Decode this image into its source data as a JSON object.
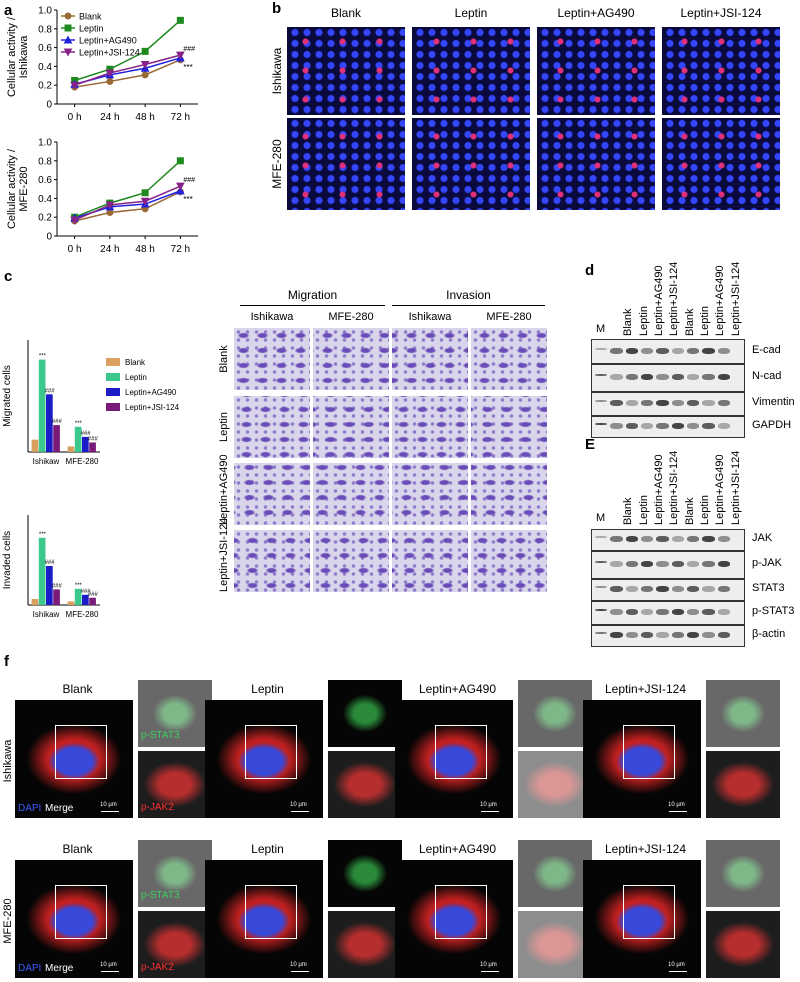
{
  "chart_data": [
    {
      "type": "line",
      "ylabel": "Cellular activity / Ishikawa",
      "categories": [
        "0 h",
        "24 h",
        "48 h",
        "72 h"
      ],
      "ylim": [
        0,
        1
      ],
      "yticks": [
        0,
        0.2,
        0.4,
        0.6,
        0.8,
        {
          "value": 1,
          "label": "1.0"
        }
      ],
      "legend": "upper left",
      "annotations": [
        "###",
        "***"
      ],
      "series": [
        {
          "name": "Blank",
          "color": "#9b6a34",
          "marker": "circle",
          "values": [
            0.18,
            0.24,
            0.31,
            0.47
          ]
        },
        {
          "name": "Leptin",
          "color": "#1e8a1e",
          "marker": "square",
          "values": [
            0.25,
            0.37,
            0.56,
            0.89
          ]
        },
        {
          "name": "Leptin+AG490",
          "color": "#2222dd",
          "marker": "triangle-up",
          "values": [
            0.21,
            0.31,
            0.38,
            0.49
          ]
        },
        {
          "name": "Leptin+JSI-124",
          "color": "#882288",
          "marker": "triangle-down",
          "values": [
            0.2,
            0.33,
            0.42,
            0.52
          ]
        }
      ]
    },
    {
      "type": "line",
      "ylabel": "Cellular activity / MFE-280",
      "categories": [
        "0 h",
        "24 h",
        "48 h",
        "72 h"
      ],
      "ylim": [
        0,
        1
      ],
      "yticks": [
        0,
        0.2,
        0.4,
        0.6,
        0.8,
        {
          "value": 1,
          "label": "1.0"
        }
      ],
      "annotations": [
        "###",
        "***"
      ],
      "series": [
        {
          "name": "Blank",
          "color": "#9b6a34",
          "marker": "circle",
          "values": [
            0.16,
            0.25,
            0.29,
            0.47
          ]
        },
        {
          "name": "Leptin",
          "color": "#1e8a1e",
          "marker": "square",
          "values": [
            0.2,
            0.35,
            0.46,
            0.8
          ]
        },
        {
          "name": "Leptin+AG490",
          "color": "#2222dd",
          "marker": "triangle-up",
          "values": [
            0.19,
            0.31,
            0.34,
            0.48
          ]
        },
        {
          "name": "Leptin+JSI-124",
          "color": "#882288",
          "marker": "triangle-down",
          "values": [
            0.17,
            0.33,
            0.37,
            0.53
          ]
        }
      ]
    },
    {
      "type": "bar",
      "ylabel": "Migrated cells",
      "categories": [
        "Ishikaw",
        "MFE-280"
      ],
      "ylim": [
        0,
        200
      ],
      "legend": "right",
      "annotations": [
        "***",
        "###"
      ],
      "series": [
        {
          "name": "Blank",
          "color": "#d9a060",
          "values": [
            22,
            10
          ]
        },
        {
          "name": "Leptin",
          "color": "#3cc88c",
          "values": [
            165,
            45
          ]
        },
        {
          "name": "Leptin+AG490",
          "color": "#1b1bc8",
          "values": [
            103,
            27
          ]
        },
        {
          "name": "Leptin+JSI-124",
          "color": "#7a1a7a",
          "values": [
            48,
            17
          ]
        }
      ]
    },
    {
      "type": "bar",
      "ylabel": "Invaded cells",
      "categories": [
        "Ishikaw",
        "MFE-280"
      ],
      "ylim": [
        0,
        150
      ],
      "annotations": [
        "***",
        "###"
      ],
      "series": [
        {
          "name": "Blank",
          "color": "#d9a060",
          "values": [
            10,
            6
          ]
        },
        {
          "name": "Leptin",
          "color": "#3cc88c",
          "values": [
            112,
            27
          ]
        },
        {
          "name": "Leptin+AG490",
          "color": "#1b1bc8",
          "values": [
            65,
            17
          ]
        },
        {
          "name": "Leptin+JSI-124",
          "color": "#7a1a7a",
          "values": [
            26,
            12
          ]
        }
      ]
    }
  ],
  "panel_labels": [
    "a",
    "b",
    "c",
    "d",
    "E",
    "f"
  ],
  "panel_b": {
    "columns": [
      "Blank",
      "Leptin",
      "Leptin+AG490",
      "Leptin+JSI-124"
    ],
    "rows": [
      "Ishikawa",
      "MFE-280"
    ]
  },
  "panel_c": {
    "groups": [
      "Migration",
      "Invasion"
    ],
    "cell_lines": [
      "Ishikawa",
      "MFE-280",
      "Ishikawa",
      "MFE-280"
    ],
    "rows": [
      "Blank",
      "Leptin",
      "Leptin+AG490",
      "Leptin+JSI-124"
    ]
  },
  "panel_d": {
    "lanes": [
      "M",
      "Blank",
      "Leptin",
      "Leptin+AG490",
      "Leptin+JSI-124",
      "Blank",
      "Leptin",
      "Leptin+AG490",
      "Leptin+JSI-124"
    ],
    "proteins": [
      "E-cad",
      "N-cad",
      "Vimentin",
      "GAPDH"
    ]
  },
  "panel_E": {
    "lanes": [
      "M",
      "Blank",
      "Leptin",
      "Leptin+AG490",
      "Leptin+JSI-124",
      "Blank",
      "Leptin",
      "Leptin+AG490",
      "Leptin+JSI-124"
    ],
    "proteins": [
      "JAK",
      "p-JAK",
      "STAT3",
      "p-STAT3",
      "β-actin"
    ]
  },
  "panel_f": {
    "rows": [
      "Ishikawa",
      "MFE-280"
    ],
    "conditions": [
      "Blank",
      "Leptin",
      "Leptin+AG490",
      "Leptin+JSI-124"
    ],
    "channels": [
      "DAPI",
      "Merge",
      "p-STAT3",
      "p-JAK2"
    ],
    "scale_bar": "10 μm"
  }
}
